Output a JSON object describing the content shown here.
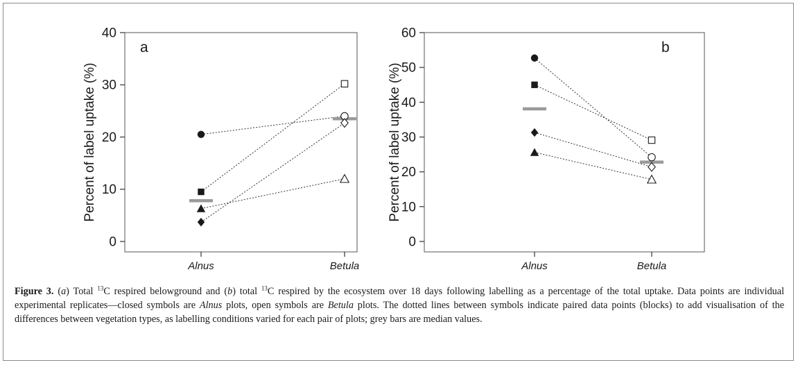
{
  "chart_data": [
    {
      "type": "scatter",
      "panel_label": "a",
      "ylabel": "Percent of label uptake (%)",
      "xlabel": "",
      "categories": [
        "Alnus",
        "Betula"
      ],
      "ylim": [
        -2,
        40
      ],
      "yticks": [
        0,
        10,
        20,
        30,
        40
      ],
      "grid": false,
      "pairs": [
        {
          "marker": "circle",
          "alnus": 20.5,
          "betula": 24.0
        },
        {
          "marker": "square",
          "alnus": 9.5,
          "betula": 30.2
        },
        {
          "marker": "triangle",
          "alnus": 6.3,
          "betula": 12.0
        },
        {
          "marker": "diamond",
          "alnus": 3.7,
          "betula": 22.7
        }
      ],
      "medians": {
        "alnus": 7.8,
        "betula": 23.5
      }
    },
    {
      "type": "scatter",
      "panel_label": "b",
      "ylabel": "Percent of label uptake (%)",
      "xlabel": "",
      "categories": [
        "Alnus",
        "Betula"
      ],
      "ylim": [
        -3,
        60
      ],
      "yticks": [
        0,
        10,
        20,
        30,
        40,
        50,
        60
      ],
      "grid": false,
      "pairs": [
        {
          "marker": "circle",
          "alnus": 52.7,
          "betula": 24.2
        },
        {
          "marker": "square",
          "alnus": 45.0,
          "betula": 29.1
        },
        {
          "marker": "diamond",
          "alnus": 31.3,
          "betula": 21.4
        },
        {
          "marker": "triangle",
          "alnus": 25.6,
          "betula": 17.8
        }
      ],
      "medians": {
        "alnus": 38.1,
        "betula": 22.8
      }
    }
  ],
  "caption": {
    "figure_label": "Figure 3.",
    "p1": "(",
    "a": "a",
    "p2": ") Total ",
    "sup1": "13",
    "p3": "C respired belowground and (",
    "b": "b",
    "p4": ") total ",
    "sup2": "13",
    "p5": "C respired by the ecosystem over 18 days following labelling as a percentage of the total uptake. Data points are individual experimental replicates—closed symbols are ",
    "alnus": "Alnus",
    "p6": " plots, open symbols are ",
    "betula": "Betula",
    "p7": " plots. The dotted lines between symbols indicate paired data points (blocks) to add visualisation of the differences between vegetation types, as labelling conditions varied for each pair of plots; grey bars are median values."
  },
  "colors": {
    "ink": "#1a1a1a",
    "median_bar": "#9a9a9a",
    "frame": "#8a8a8a"
  }
}
